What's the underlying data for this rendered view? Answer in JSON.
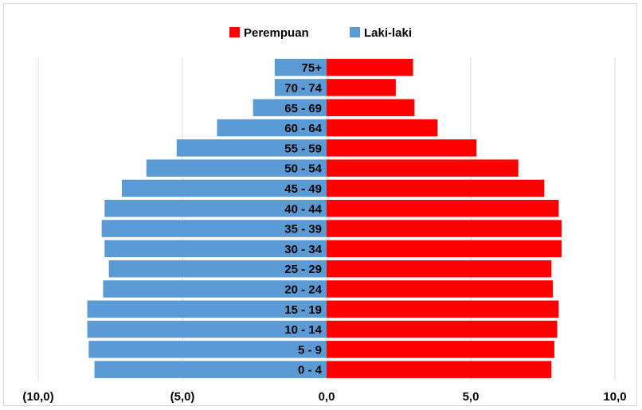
{
  "chart_data": {
    "type": "bar",
    "orientation": "horizontal",
    "subtype": "population-pyramid",
    "categories": [
      "0 - 4",
      "5 - 9",
      "10 - 14",
      "15 - 19",
      "20 - 24",
      "25 - 29",
      "30 - 34",
      "35 - 39",
      "40 - 44",
      "45 - 49",
      "50 - 54",
      "55 - 59",
      "60 - 64",
      "65 - 69",
      "70 - 74",
      "75+"
    ],
    "series": [
      {
        "name": "Perempuan",
        "color": "#ff0000",
        "values": [
          7.8,
          7.9,
          8.0,
          8.05,
          7.85,
          7.8,
          8.15,
          8.15,
          8.05,
          7.55,
          6.65,
          5.2,
          3.85,
          3.05,
          2.4,
          3.0
        ]
      },
      {
        "name": "Laki-laki",
        "color": "#5b9bd5",
        "values": [
          8.05,
          8.25,
          8.3,
          8.3,
          7.75,
          7.55,
          7.7,
          7.8,
          7.7,
          7.1,
          6.25,
          5.2,
          3.8,
          2.55,
          1.8,
          1.8
        ]
      }
    ],
    "xlim": [
      -10,
      10
    ],
    "xticks": [
      "(10,0)",
      "(5,0)",
      "0,0",
      "5,0",
      "10,0"
    ],
    "xtick_values": [
      -10,
      -5,
      0,
      5,
      10
    ],
    "grid": "vertical",
    "legend": "top-center",
    "title": "",
    "xlabel": "",
    "ylabel": ""
  }
}
